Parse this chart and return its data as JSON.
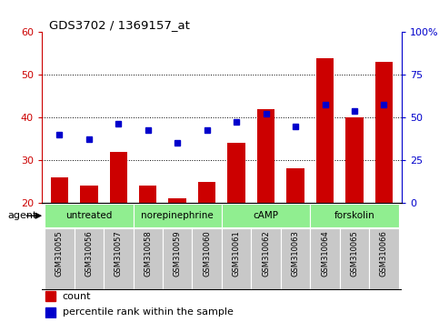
{
  "title": "GDS3702 / 1369157_at",
  "samples": [
    "GSM310055",
    "GSM310056",
    "GSM310057",
    "GSM310058",
    "GSM310059",
    "GSM310060",
    "GSM310061",
    "GSM310062",
    "GSM310063",
    "GSM310064",
    "GSM310065",
    "GSM310066"
  ],
  "count_values": [
    26,
    24,
    32,
    24,
    21,
    25,
    34,
    42,
    28,
    54,
    40,
    53
  ],
  "percentile_values": [
    36,
    35,
    38.5,
    37,
    34,
    37,
    39,
    41,
    38,
    43,
    41.5,
    43
  ],
  "bar_color": "#cc0000",
  "dot_color": "#0000cc",
  "ylim_left": [
    20,
    60
  ],
  "ylim_right": [
    0,
    100
  ],
  "yticks_left": [
    20,
    30,
    40,
    50,
    60
  ],
  "yticks_right": [
    0,
    25,
    50,
    75,
    100
  ],
  "ytick_labels_right": [
    "0",
    "25",
    "50",
    "75",
    "100%"
  ],
  "grid_yticks": [
    30,
    40,
    50
  ],
  "agents": [
    {
      "label": "untreated",
      "start": 0,
      "end": 3
    },
    {
      "label": "norepinephrine",
      "start": 3,
      "end": 6
    },
    {
      "label": "cAMP",
      "start": 6,
      "end": 9
    },
    {
      "label": "forskolin",
      "start": 9,
      "end": 12
    }
  ],
  "agent_color": "#90ee90",
  "sample_bg_color": "#c8c8c8",
  "legend_items": [
    {
      "label": "count",
      "color": "#cc0000"
    },
    {
      "label": "percentile rank within the sample",
      "color": "#0000cc"
    }
  ],
  "title_color": "#000000",
  "left_axis_color": "#cc0000",
  "right_axis_color": "#0000cc",
  "bar_width": 0.6,
  "xlim": [
    -0.6,
    11.6
  ]
}
